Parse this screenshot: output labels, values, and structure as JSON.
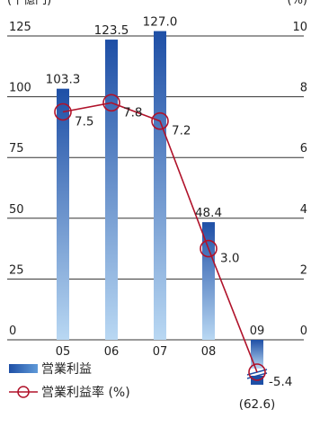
{
  "chart_data": {
    "type": "bar",
    "categories": [
      "05",
      "06",
      "07",
      "08",
      "09"
    ],
    "bar_series": {
      "name": "営業利益",
      "values": [
        103.3,
        123.5,
        127.0,
        48.4,
        -62.6
      ],
      "labels": [
        "103.3",
        "123.5",
        "127.0",
        "48.4",
        "(62.6)"
      ]
    },
    "line_series": {
      "name": "営業利益率 (%)",
      "values": [
        7.5,
        7.8,
        7.2,
        3.0,
        -5.4
      ],
      "labels": [
        "7.5",
        "7.8",
        "7.2",
        "3.0",
        "-5.4"
      ]
    },
    "y_left": {
      "unit": "(十億円)",
      "ticks": [
        "0",
        "25",
        "50",
        "75",
        "100",
        "125"
      ],
      "ylim": [
        0,
        125
      ]
    },
    "y_right": {
      "unit": "(%)",
      "ticks": [
        "0",
        "2",
        "4",
        "6",
        "8",
        "10"
      ],
      "ylim": [
        0,
        10
      ]
    },
    "grid": true,
    "legend_position": "bottom-left",
    "colors": {
      "bar_top": "#1e4fa6",
      "bar_bottom": "#b9d8f3",
      "line": "#b0122a",
      "grid": "#333333"
    }
  }
}
